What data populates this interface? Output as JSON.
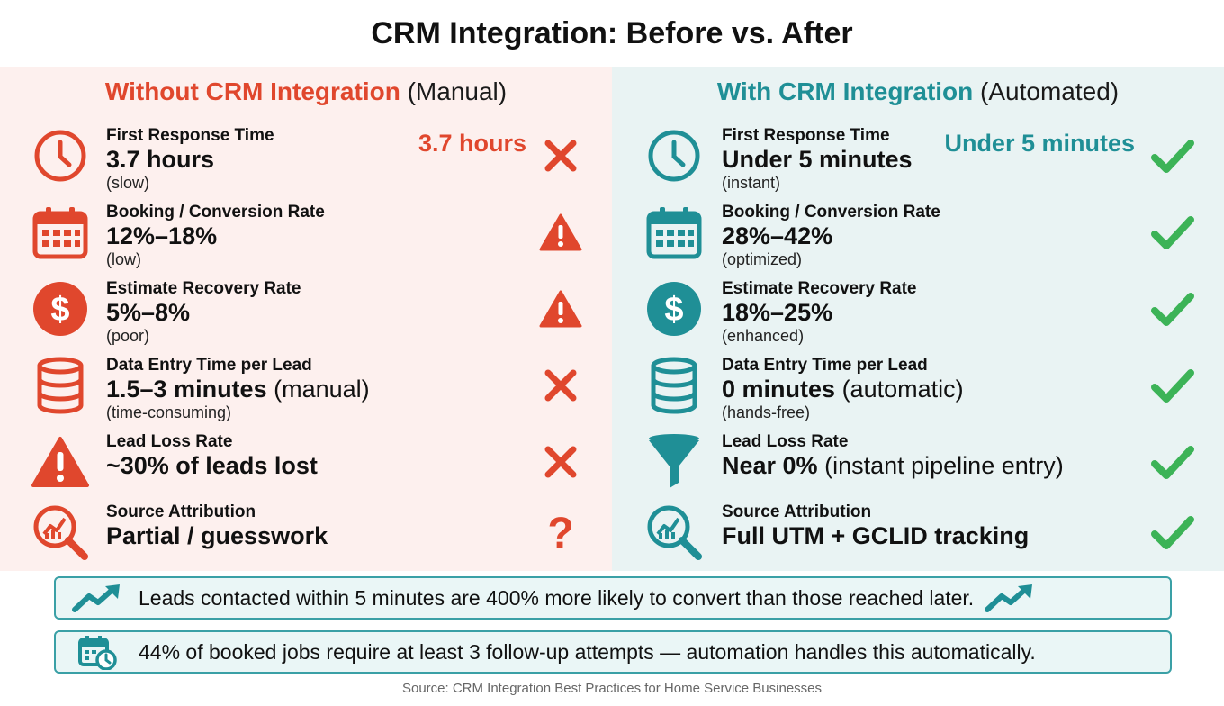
{
  "title": "CRM Integration: Before vs. After",
  "colors": {
    "left_accent": "#e0472d",
    "right_accent": "#1f8f96",
    "left_bg": "#fdf0ee",
    "right_bg": "#e9f3f3",
    "check": "#3cb357"
  },
  "left": {
    "heading_strong": "Without CRM Integration",
    "heading_soft": "(Manual)",
    "callout": "3.7 hours",
    "rows": [
      {
        "icon": "clock-icon",
        "label": "First Response Time",
        "value": "3.7 hours",
        "extra": "",
        "note": "(slow)",
        "mark": "x-mark-icon"
      },
      {
        "icon": "calendar-icon",
        "label": "Booking / Conversion Rate",
        "value": "12%–18%",
        "extra": "",
        "note": "(low)",
        "mark": "warning-icon"
      },
      {
        "icon": "dollar-icon",
        "label": "Estimate Recovery Rate",
        "value": "5%–8%",
        "extra": "",
        "note": "(poor)",
        "mark": "warning-icon"
      },
      {
        "icon": "database-icon",
        "label": "Data Entry Time per Lead",
        "value": "1.5–3 minutes",
        "extra": "(manual)",
        "note": "(time-consuming)",
        "mark": "x-mark-icon"
      },
      {
        "icon": "warning-triangle-icon",
        "label": "Lead Loss Rate",
        "value": "~30% of leads lost",
        "extra": "",
        "note": "",
        "mark": "x-mark-icon"
      },
      {
        "icon": "magnifier-chart-icon",
        "label": "Source Attribution",
        "value": "Partial / guesswork",
        "extra": "",
        "note": "",
        "mark": "question-mark-icon"
      }
    ]
  },
  "right": {
    "heading_strong": "With CRM Integration",
    "heading_soft": "(Automated)",
    "callout": "Under 5 minutes",
    "rows": [
      {
        "icon": "clock-icon",
        "label": "First Response Time",
        "value": "Under 5 minutes",
        "extra": "",
        "note": "(instant)",
        "mark": "check-icon"
      },
      {
        "icon": "calendar-icon",
        "label": "Booking / Conversion Rate",
        "value": "28%–42%",
        "extra": "",
        "note": "(optimized)",
        "mark": "check-icon"
      },
      {
        "icon": "dollar-icon",
        "label": "Estimate Recovery Rate",
        "value": "18%–25%",
        "extra": "",
        "note": "(enhanced)",
        "mark": "check-icon"
      },
      {
        "icon": "database-icon",
        "label": "Data Entry Time per Lead",
        "value": "0 minutes",
        "extra": "(automatic)",
        "note": "(hands-free)",
        "mark": "check-icon"
      },
      {
        "icon": "funnel-icon",
        "label": "Lead Loss Rate",
        "value": "Near 0%",
        "extra": "(instant pipeline entry)",
        "note": "",
        "mark": "check-icon"
      },
      {
        "icon": "magnifier-chart-icon",
        "label": "Source Attribution",
        "value": "Full UTM + GCLID tracking",
        "extra": "",
        "note": "",
        "mark": "check-icon"
      }
    ]
  },
  "banners": [
    {
      "icon": "trend-up-icon",
      "text": "Leads contacted within 5 minutes are 400% more likely to convert than those reached later."
    },
    {
      "icon": "calendar-clock-icon",
      "text": "44% of booked jobs require at least 3 follow-up attempts — automation handles this automatically."
    }
  ],
  "source": "Source: CRM Integration Best Practices for Home Service Businesses"
}
